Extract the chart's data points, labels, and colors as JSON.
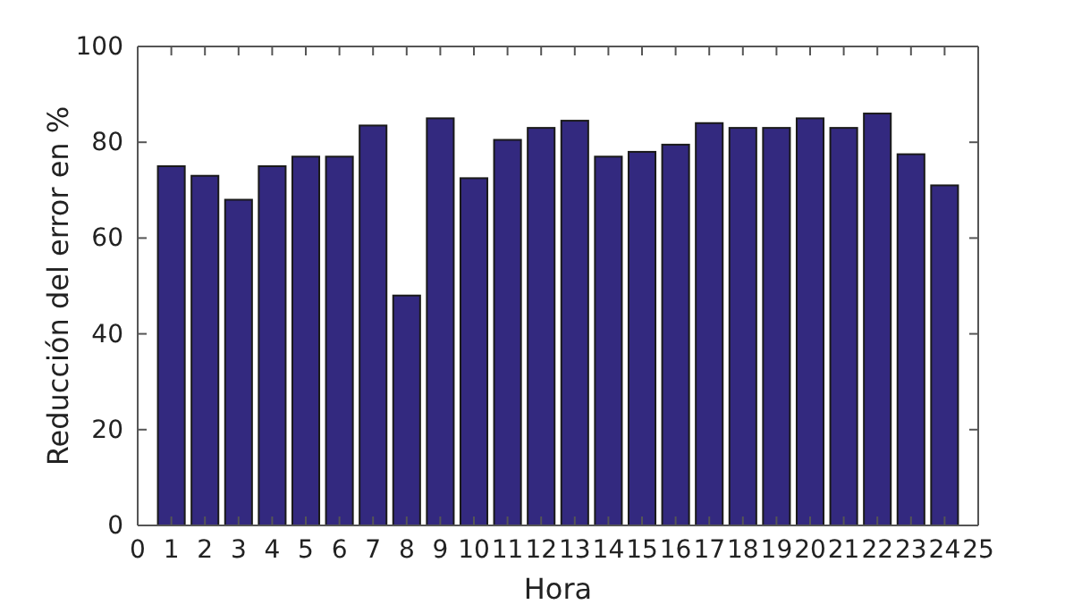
{
  "chart_data": {
    "type": "bar",
    "xlabel": "Hora",
    "ylabel": "Reducción del error en %",
    "x": [
      1,
      2,
      3,
      4,
      5,
      6,
      7,
      8,
      9,
      10,
      11,
      12,
      13,
      14,
      15,
      16,
      17,
      18,
      19,
      20,
      21,
      22,
      23,
      24
    ],
    "values": [
      75,
      73,
      68,
      75,
      77,
      77,
      83.5,
      48,
      85,
      72.5,
      80.5,
      83,
      84.5,
      77,
      78,
      79.5,
      84,
      83,
      83,
      85,
      83,
      86,
      77.5,
      71
    ],
    "color": "#33297f",
    "xlim": [
      0,
      25
    ],
    "xticks": [
      0,
      1,
      2,
      3,
      4,
      5,
      6,
      7,
      8,
      9,
      10,
      11,
      12,
      13,
      14,
      15,
      16,
      17,
      18,
      19,
      20,
      21,
      22,
      23,
      24,
      25
    ],
    "ylim": [
      0,
      100
    ],
    "yticks": [
      0,
      20,
      40,
      60,
      80,
      100
    ]
  }
}
